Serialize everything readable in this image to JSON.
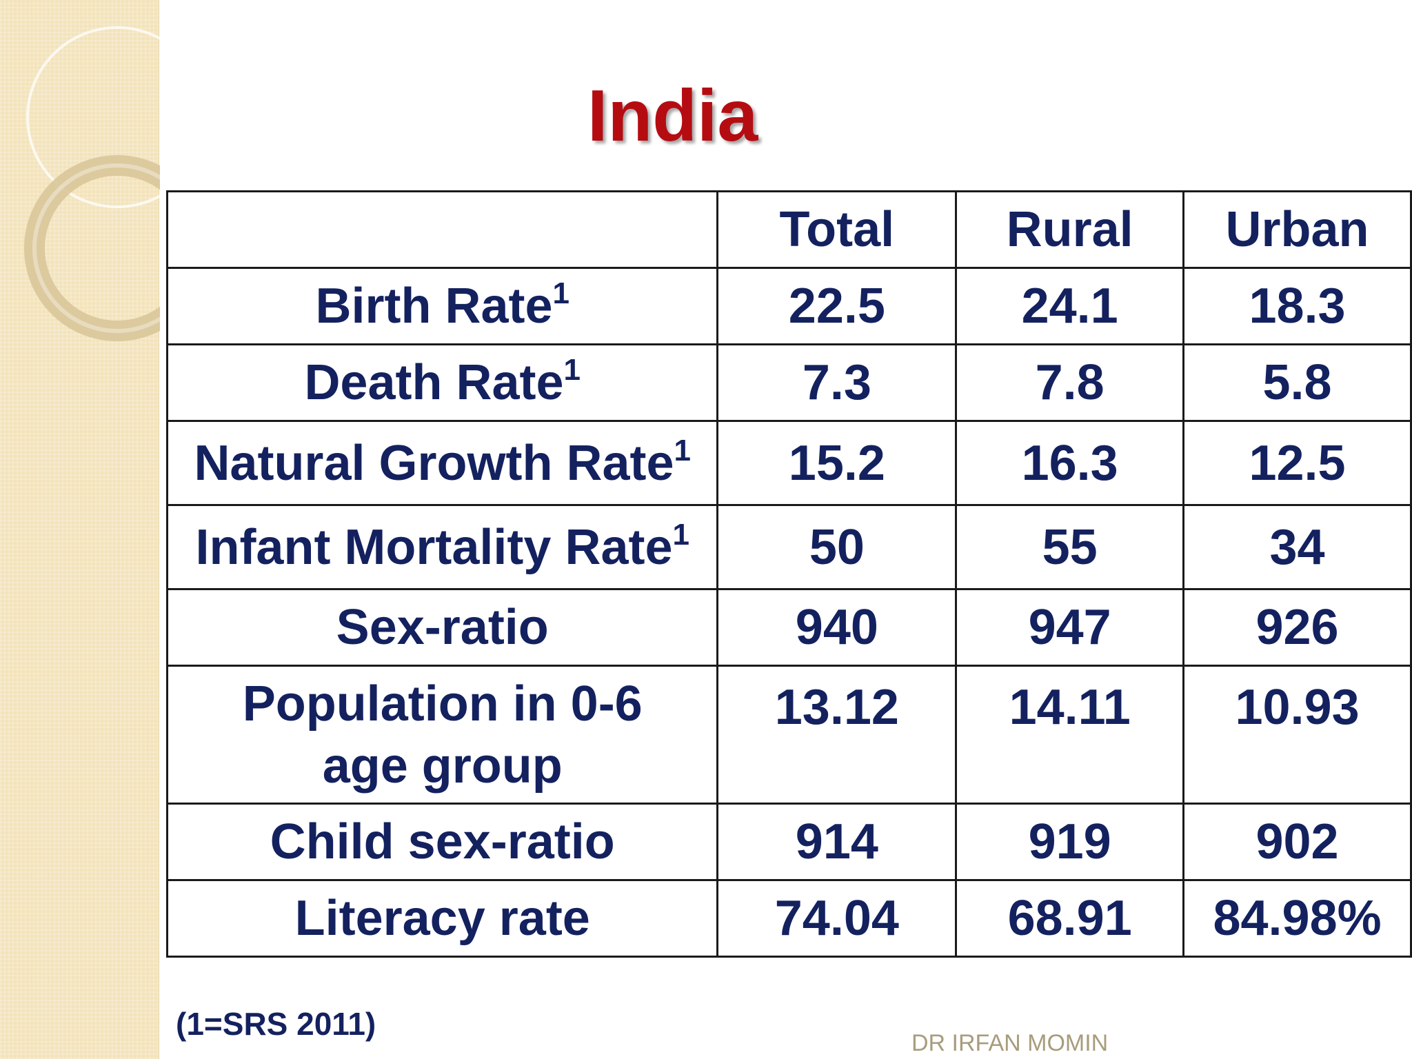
{
  "slide": {
    "title": "India",
    "footnote": "(1=SRS 2011)",
    "author": "DR IRFAN MOMIN",
    "accent_color": "#b50c12",
    "text_color": "#14215f"
  },
  "table": {
    "headers": [
      "",
      "Total",
      "Rural",
      "Urban"
    ],
    "rows": [
      {
        "label": "Birth Rate",
        "note": "1",
        "total": "22.5",
        "rural": "24.1",
        "urban": "18.3"
      },
      {
        "label": "Death Rate",
        "note": "1",
        "total": "7.3",
        "rural": "7.8",
        "urban": "5.8"
      },
      {
        "label": "Natural Growth Rate",
        "note": "1",
        "total": "15.2",
        "rural": "16.3",
        "urban": "12.5"
      },
      {
        "label": "Infant Mortality Rate",
        "note": "1",
        "total": "50",
        "rural": "55",
        "urban": "34"
      },
      {
        "label": "Sex-ratio",
        "note": "",
        "total": "940",
        "rural": "947",
        "urban": "926"
      },
      {
        "label_line1": "Population in 0-6",
        "label_line2": "age group",
        "total": "13.12",
        "rural": "14.11",
        "urban": "10.93"
      },
      {
        "label": "Child sex-ratio",
        "note": "",
        "total": "914",
        "rural": "919",
        "urban": "902"
      },
      {
        "label": "Literacy rate",
        "note": "",
        "total": "74.04",
        "rural": "68.91",
        "urban": "84.98%"
      }
    ]
  }
}
